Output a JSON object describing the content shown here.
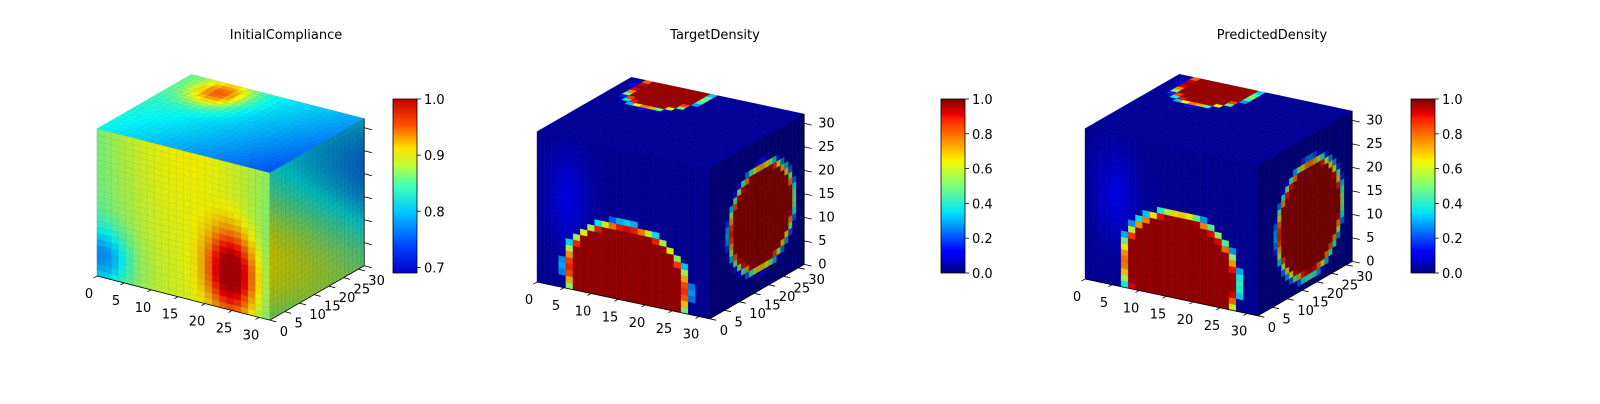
{
  "figure": {
    "background": "#ffffff",
    "colormap": "jet"
  },
  "chart_data": [
    {
      "type": "heatmap",
      "title": "InitialCompliance",
      "view": "3d-voxel-cube",
      "x_ticks": [
        "0",
        "5",
        "10",
        "15",
        "20",
        "25",
        "30"
      ],
      "y_ticks": [
        "0",
        "5",
        "10",
        "15",
        "20",
        "25",
        "30"
      ],
      "z_ticks": [],
      "xlim": [
        0,
        32
      ],
      "ylim": [
        0,
        32
      ],
      "zlim": [
        0,
        32
      ],
      "colorbar": {
        "range": [
          0.69,
          1.0
        ],
        "ticks": [
          "0.7",
          "0.8",
          "0.9",
          "1.0"
        ],
        "tick_values": [
          0.7,
          0.8,
          0.9,
          1.0
        ]
      },
      "pattern": "compliance"
    },
    {
      "type": "heatmap",
      "title": "TargetDensity",
      "view": "3d-voxel-cube",
      "x_ticks": [
        "0",
        "5",
        "10",
        "15",
        "20",
        "25",
        "30"
      ],
      "y_ticks": [
        "0",
        "5",
        "10",
        "15",
        "20",
        "25",
        "30"
      ],
      "z_ticks": [
        "0",
        "5",
        "10",
        "15",
        "20",
        "25",
        "30"
      ],
      "xlim": [
        0,
        32
      ],
      "ylim": [
        0,
        32
      ],
      "zlim": [
        0,
        32
      ],
      "colorbar": {
        "range": [
          0.0,
          1.0
        ],
        "ticks": [
          "0.0",
          "0.2",
          "0.4",
          "0.6",
          "0.8",
          "1.0"
        ],
        "tick_values": [
          0.0,
          0.2,
          0.4,
          0.6,
          0.8,
          1.0
        ]
      },
      "pattern": "target"
    },
    {
      "type": "heatmap",
      "title": "PredictedDensity",
      "view": "3d-voxel-cube",
      "x_ticks": [
        "0",
        "5",
        "10",
        "15",
        "20",
        "25",
        "30"
      ],
      "y_ticks": [
        "0",
        "5",
        "10",
        "15",
        "20",
        "25",
        "30"
      ],
      "z_ticks": [
        "0",
        "5",
        "10",
        "15",
        "20",
        "25",
        "30"
      ],
      "xlim": [
        0,
        32
      ],
      "ylim": [
        0,
        32
      ],
      "zlim": [
        0,
        32
      ],
      "colorbar": {
        "range": [
          0.0,
          1.0
        ],
        "ticks": [
          "0.0",
          "0.2",
          "0.4",
          "0.6",
          "0.8",
          "1.0"
        ],
        "tick_values": [
          0.0,
          0.2,
          0.4,
          0.6,
          0.8,
          1.0
        ]
      },
      "pattern": "predicted"
    }
  ]
}
